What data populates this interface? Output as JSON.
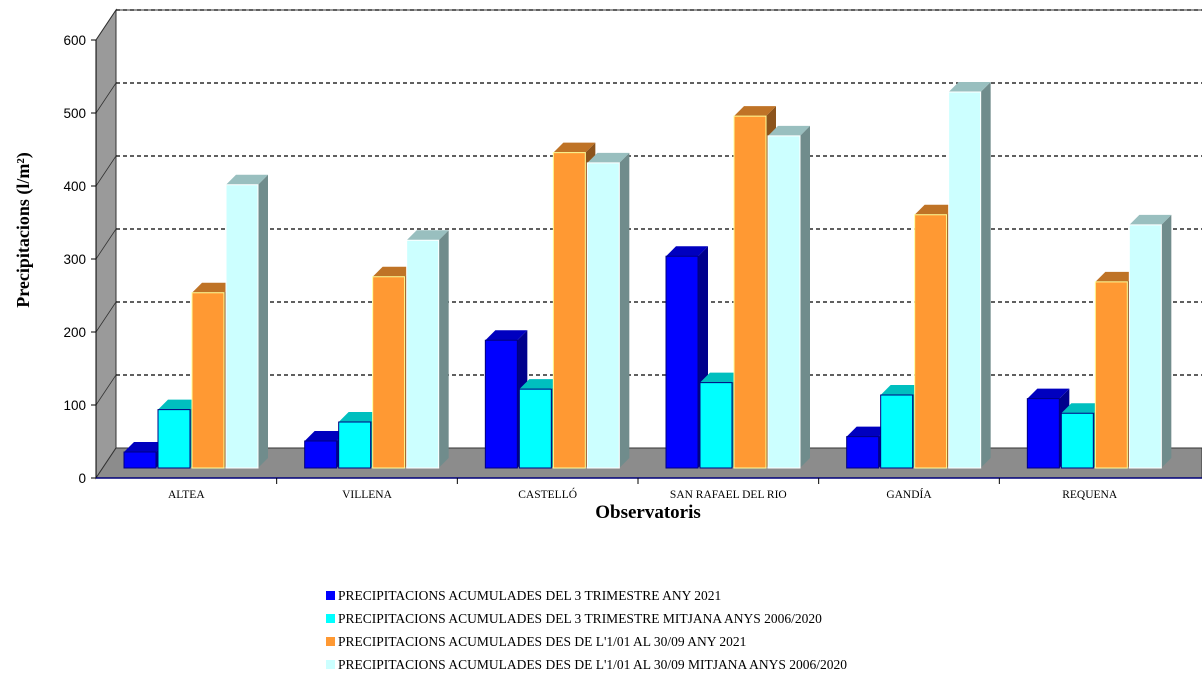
{
  "chart_data": {
    "type": "bar",
    "title": "",
    "xlabel": "Observatoris",
    "ylabel": "Precipitacions (l/m²)",
    "ylim": [
      0,
      600
    ],
    "yticks": [
      0,
      100,
      200,
      300,
      400,
      500,
      600
    ],
    "grid": true,
    "legend_position": "bottom",
    "categories": [
      "ALTEA",
      "VILLENA",
      "CASTELLÓ",
      "SAN RAFAEL DEL RIO",
      "GANDÍA",
      "REQUENA"
    ],
    "series": [
      {
        "name": "PRECIPITACIONS ACUMULADES DEL 3 TRIMESTRE ANY 2021",
        "color": "#0000ff",
        "values": [
          22,
          37,
          175,
          290,
          43,
          95
        ]
      },
      {
        "name": "PRECIPITACIONS ACUMULADES DEL 3 TRIMESTRE MITJANA ANYS 2006/2020",
        "color": "#00ffff",
        "values": [
          80,
          63,
          108,
          117,
          100,
          75
        ]
      },
      {
        "name": "PRECIPITACIONS ACUMULADES DES DE L'1/01 AL 30/09 ANY 2021",
        "color": "#ff9933",
        "values": [
          240,
          262,
          432,
          482,
          347,
          255
        ]
      },
      {
        "name": "PRECIPITACIONS ACUMULADES DES DE L'1/01 AL 30/09 MITJANA ANYS 2006/2020",
        "color": "#ccffff",
        "values": [
          388,
          312,
          418,
          455,
          515,
          333
        ]
      }
    ]
  }
}
